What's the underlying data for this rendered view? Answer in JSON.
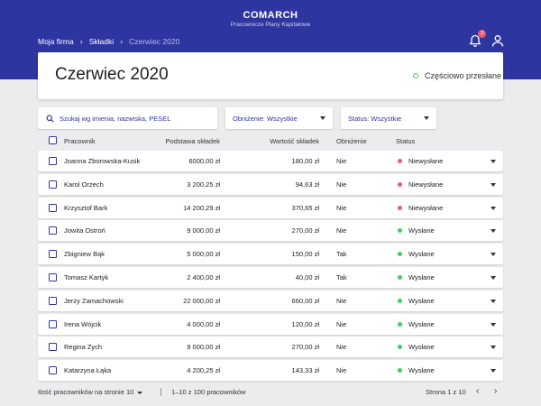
{
  "brand": {
    "name": "COMARCH",
    "subtitle": "Pracownicze Plany Kapitałowe"
  },
  "breadcrumb": {
    "items": [
      "Moja firma",
      "Składki",
      "Czerwiec 2020"
    ],
    "separator": "›"
  },
  "notifications": {
    "count": "3"
  },
  "page": {
    "title": "Czerwiec 2020",
    "status": "Częściowo przesłane"
  },
  "filters": {
    "search_placeholder": "Szukaj wg imienia, nazwiska, PESEL",
    "obnizenie": "Obniżenie: Wszystkie",
    "status": "Status: Wszystkie"
  },
  "table": {
    "headers": [
      "Pracownik",
      "Podstawa składek",
      "Wartość składek",
      "Obniżenie",
      "Status"
    ],
    "rows": [
      {
        "name": "Joanna Zborowska-Kusik",
        "base": "6000,00 zł",
        "value": "180,00 zł",
        "reduction": "Nie",
        "status": "Niewysłane",
        "status_color": "#e85d6b"
      },
      {
        "name": "Karol Orzech",
        "base": "3 200,25 zł",
        "value": "94,63 zł",
        "reduction": "Nie",
        "status": "Niewysłane",
        "status_color": "#e85d6b"
      },
      {
        "name": "Krzysztof Bark",
        "base": "14 200,29 zł",
        "value": "370,65 zł",
        "reduction": "Nie",
        "status": "Niewysłane",
        "status_color": "#e85d6b"
      },
      {
        "name": "Jowita Ostroń",
        "base": "9 000,00 zł",
        "value": "270,00 zł",
        "reduction": "Nie",
        "status": "Wysłane",
        "status_color": "#3ecf5e"
      },
      {
        "name": "Zbigniew Bąk",
        "base": "5 000,00 zł",
        "value": "150,00 zł",
        "reduction": "Tak",
        "status": "Wysłane",
        "status_color": "#3ecf5e"
      },
      {
        "name": "Tomasz Kartyk",
        "base": "2 400,00 zł",
        "value": "40,00 zł",
        "reduction": "Tak",
        "status": "Wysłane",
        "status_color": "#3ecf5e"
      },
      {
        "name": "Jerzy Zamachowski",
        "base": "22 000,00 zł",
        "value": "660,00 zł",
        "reduction": "Nie",
        "status": "Wysłane",
        "status_color": "#3ecf5e"
      },
      {
        "name": "Irena Wójcik",
        "base": "4 000,00 zł",
        "value": "120,00 zł",
        "reduction": "Nie",
        "status": "Wysłane",
        "status_color": "#3ecf5e"
      },
      {
        "name": "Regina Zych",
        "base": "9 000,00 zł",
        "value": "270,00 zł",
        "reduction": "Nie",
        "status": "Wysłane",
        "status_color": "#3ecf5e"
      },
      {
        "name": "Katarzyna Łąka",
        "base": "4 200,25 zł",
        "value": "143,33 zł",
        "reduction": "Nie",
        "status": "Wysłane",
        "status_color": "#3ecf5e"
      }
    ]
  },
  "footer": {
    "per_page": "Ilość pracowników na stronie 10",
    "range": "1–10 z 100 pracowników",
    "page": "Strona 1 z 10",
    "prev": "‹",
    "next": "›"
  },
  "colors": {
    "header": "#2f35a0",
    "sent": "#3ecf5e",
    "not_sent": "#e85d6b",
    "partial": "#4cbf6a"
  }
}
